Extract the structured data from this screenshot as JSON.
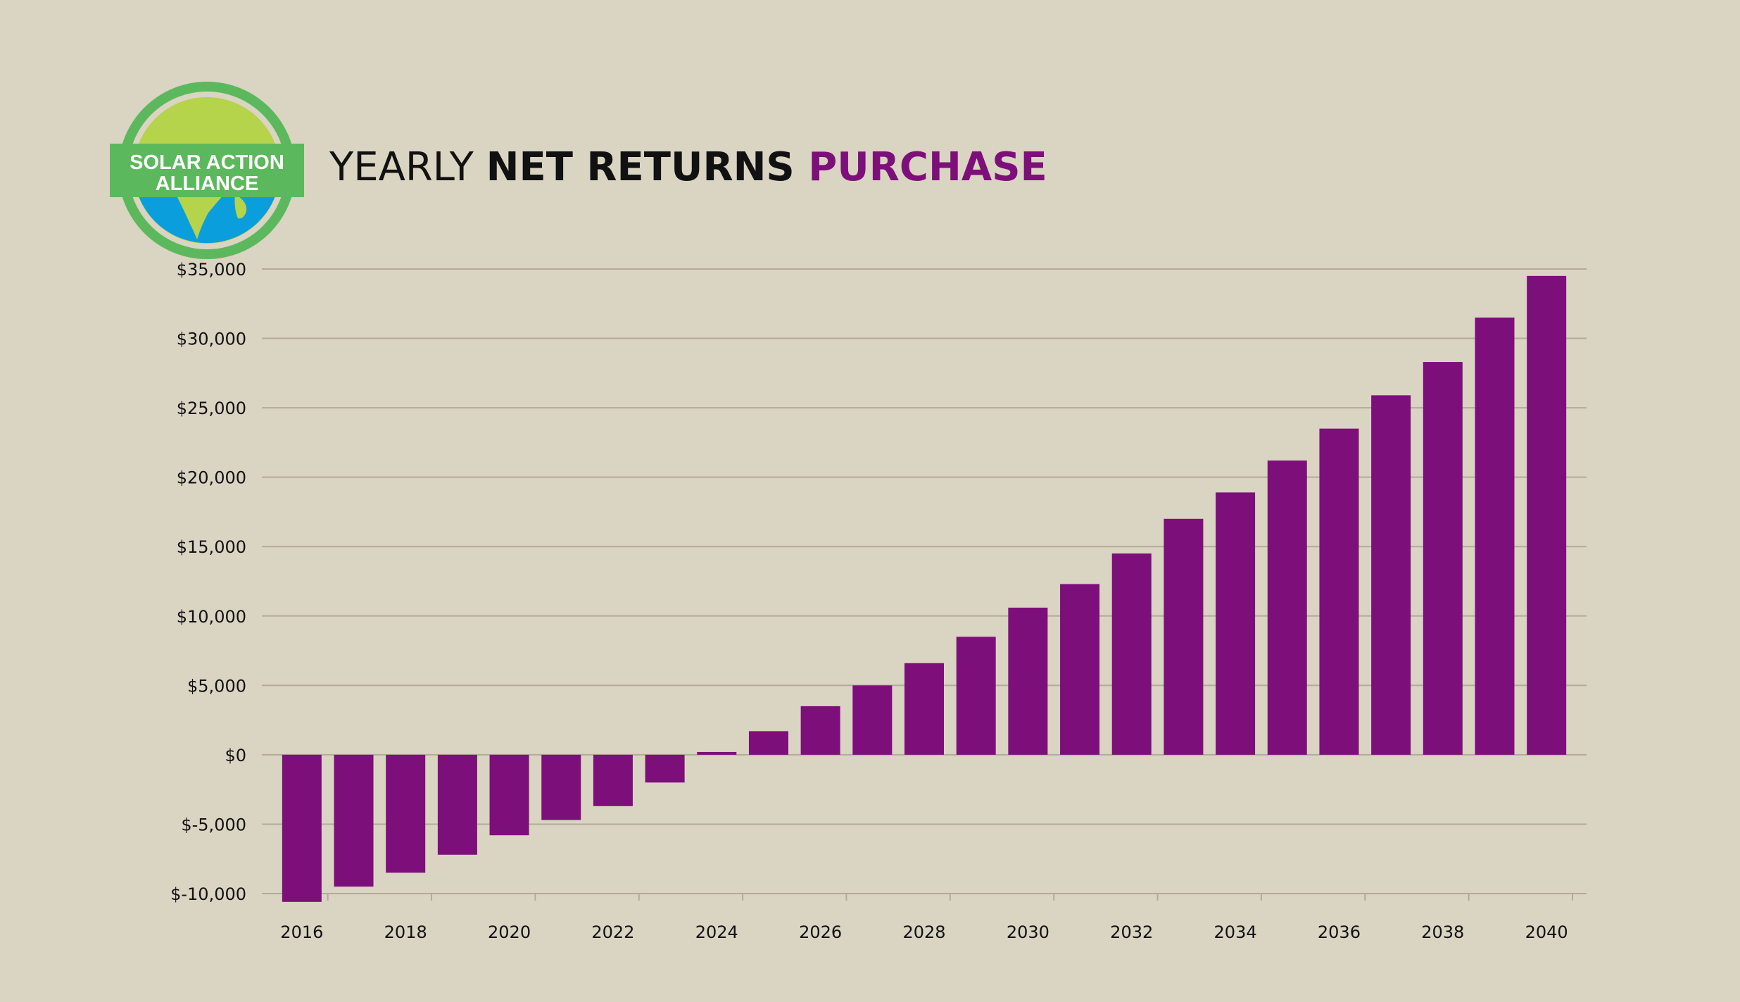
{
  "logo": {
    "line1": "SOLAR ACTION",
    "line2": "ALLIANCE"
  },
  "title": {
    "part1": "YEARLY ",
    "part2": "NET RETURNS ",
    "part3": "PURCHASE"
  },
  "colors": {
    "background": "#dad4c2",
    "bar": "#7d0f7a",
    "grid": "#b3ab9a",
    "accent": "#7d0f7a",
    "logo_green": "#5cb85c",
    "logo_sun": "#b5d34b",
    "logo_ocean": "#0a9fdc"
  },
  "chart_data": {
    "type": "bar",
    "title": "YEARLY NET RETURNS PURCHASE",
    "xlabel": "",
    "ylabel": "",
    "x_tick_labels": [
      "2016",
      "2018",
      "2020",
      "2022",
      "2024",
      "2026",
      "2028",
      "2030",
      "2032",
      "2034",
      "2036",
      "2038",
      "2040"
    ],
    "y_tick_labels": [
      "$35,000",
      "$30,000",
      "$25,000",
      "$20,000",
      "$15,000",
      "$10,000",
      "$5,000",
      "$0",
      "$-5,000",
      "$-10,000"
    ],
    "y_ticks": [
      35000,
      30000,
      25000,
      20000,
      15000,
      10000,
      5000,
      0,
      -5000,
      -10000
    ],
    "ylim": [
      -10000,
      35000
    ],
    "grid": true,
    "legend": "none",
    "categories": [
      "2016",
      "2017",
      "2018",
      "2019",
      "2020",
      "2021",
      "2022",
      "2023",
      "2024",
      "2025",
      "2026",
      "2027",
      "2028",
      "2029",
      "2030",
      "2031",
      "2032",
      "2033",
      "2034",
      "2035",
      "2036",
      "2037",
      "2038",
      "2039",
      "2040"
    ],
    "values": [
      -10600,
      -9500,
      -8500,
      -7200,
      -5800,
      -4700,
      -3700,
      -2000,
      200,
      1700,
      3500,
      5000,
      6600,
      8500,
      10600,
      12300,
      14500,
      17000,
      18900,
      21200,
      23500,
      25900,
      28300,
      31500,
      34500
    ]
  }
}
